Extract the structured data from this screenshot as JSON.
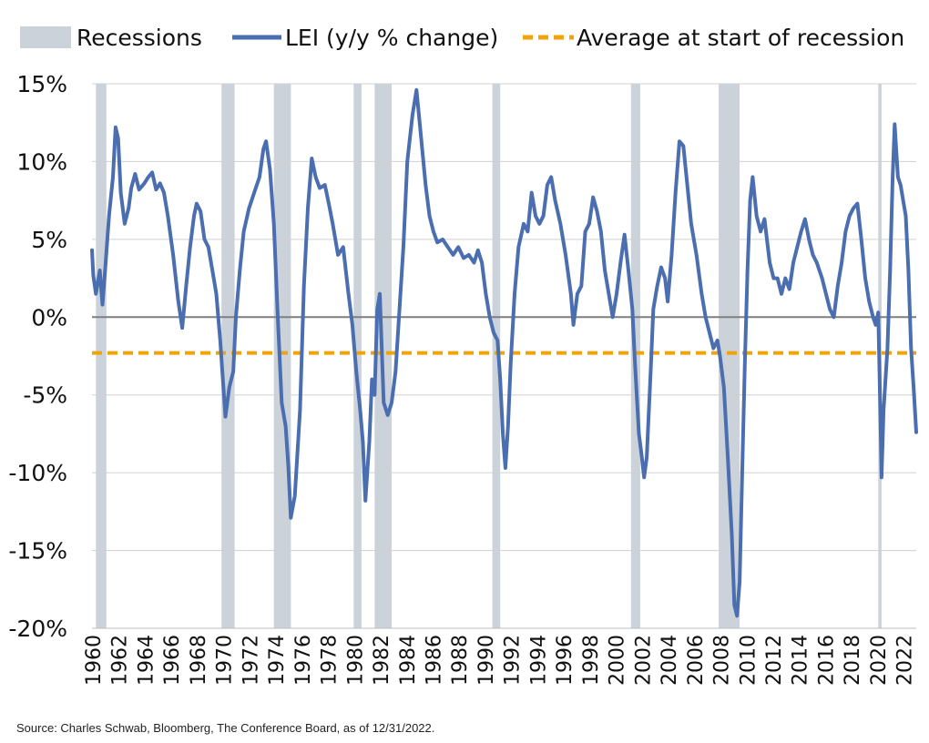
{
  "chart_data": {
    "type": "line",
    "title": "",
    "xlabel": "",
    "ylabel": "",
    "ylim": [
      -20,
      15
    ],
    "xlim": [
      1960,
      2023
    ],
    "y_ticks": [
      15,
      10,
      5,
      0,
      -5,
      -10,
      -15,
      -20
    ],
    "y_tick_labels": [
      "15%",
      "10%",
      "5%",
      "0%",
      "-5%",
      "-10%",
      "-15%",
      "-20%"
    ],
    "x_ticks": [
      1960,
      1962,
      1964,
      1966,
      1968,
      1970,
      1972,
      1974,
      1976,
      1978,
      1980,
      1982,
      1984,
      1986,
      1988,
      1990,
      1992,
      1994,
      1996,
      1998,
      2000,
      2002,
      2004,
      2006,
      2008,
      2010,
      2012,
      2014,
      2016,
      2018,
      2020,
      2022
    ],
    "x_tick_labels": [
      "1960",
      "1962",
      "1964",
      "1966",
      "1968",
      "1970",
      "1972",
      "1974",
      "1976",
      "1978",
      "1980",
      "1982",
      "1984",
      "1986",
      "1988",
      "1990",
      "1992",
      "1994",
      "1996",
      "1998",
      "2000",
      "2002",
      "2004",
      "2006",
      "2008",
      "2010",
      "2012",
      "2014",
      "2016",
      "2018",
      "2020",
      "2022"
    ],
    "grid": "horizontal",
    "legend": {
      "position": "top",
      "entries": [
        {
          "label": "Recessions",
          "kind": "area",
          "color": "#cbd2da"
        },
        {
          "label": "LEI (y/y % change)",
          "kind": "line",
          "color": "#4a6eb0"
        },
        {
          "label": "Average at start of recession",
          "kind": "dashed-line",
          "color": "#f0a30a"
        }
      ]
    },
    "recessions": [
      {
        "start": 1960.3,
        "end": 1961.1
      },
      {
        "start": 1969.9,
        "end": 1970.9
      },
      {
        "start": 1973.9,
        "end": 1975.2
      },
      {
        "start": 1980.0,
        "end": 1980.6
      },
      {
        "start": 1981.6,
        "end": 1982.9
      },
      {
        "start": 1990.6,
        "end": 1991.2
      },
      {
        "start": 2001.2,
        "end": 2001.9
      },
      {
        "start": 2007.9,
        "end": 2009.5
      },
      {
        "start": 2020.1,
        "end": 2020.35
      }
    ],
    "series": [
      {
        "name": "LEI (y/y % change)",
        "color": "#4a6eb0",
        "points": [
          [
            1960.0,
            4.3
          ],
          [
            1960.1,
            2.7
          ],
          [
            1960.3,
            1.5
          ],
          [
            1960.6,
            3.0
          ],
          [
            1960.8,
            0.8
          ],
          [
            1961.0,
            3.0
          ],
          [
            1961.3,
            6.5
          ],
          [
            1961.6,
            9.0
          ],
          [
            1961.8,
            12.2
          ],
          [
            1962.0,
            11.5
          ],
          [
            1962.2,
            8.0
          ],
          [
            1962.5,
            6.0
          ],
          [
            1962.8,
            7.0
          ],
          [
            1963.0,
            8.3
          ],
          [
            1963.3,
            9.2
          ],
          [
            1963.6,
            8.2
          ],
          [
            1964.0,
            8.6
          ],
          [
            1964.3,
            9.0
          ],
          [
            1964.6,
            9.3
          ],
          [
            1964.9,
            8.2
          ],
          [
            1965.2,
            8.6
          ],
          [
            1965.5,
            8.0
          ],
          [
            1965.8,
            6.5
          ],
          [
            1966.2,
            4.0
          ],
          [
            1966.6,
            1.0
          ],
          [
            1966.9,
            -0.7
          ],
          [
            1967.2,
            2.0
          ],
          [
            1967.5,
            4.5
          ],
          [
            1967.8,
            6.5
          ],
          [
            1968.0,
            7.3
          ],
          [
            1968.3,
            6.8
          ],
          [
            1968.6,
            5.0
          ],
          [
            1968.9,
            4.5
          ],
          [
            1969.2,
            3.0
          ],
          [
            1969.5,
            1.5
          ],
          [
            1969.8,
            -1.5
          ],
          [
            1970.0,
            -4.0
          ],
          [
            1970.2,
            -6.4
          ],
          [
            1970.5,
            -4.5
          ],
          [
            1970.8,
            -3.5
          ],
          [
            1971.0,
            0.0
          ],
          [
            1971.3,
            3.0
          ],
          [
            1971.6,
            5.5
          ],
          [
            1972.0,
            7.0
          ],
          [
            1972.4,
            8.0
          ],
          [
            1972.8,
            9.0
          ],
          [
            1973.1,
            10.8
          ],
          [
            1973.3,
            11.3
          ],
          [
            1973.6,
            9.5
          ],
          [
            1973.9,
            6.0
          ],
          [
            1974.2,
            0.0
          ],
          [
            1974.5,
            -5.5
          ],
          [
            1974.8,
            -7.0
          ],
          [
            1975.0,
            -9.5
          ],
          [
            1975.2,
            -12.9
          ],
          [
            1975.5,
            -11.5
          ],
          [
            1975.9,
            -6.0
          ],
          [
            1976.2,
            2.0
          ],
          [
            1976.5,
            7.0
          ],
          [
            1976.8,
            10.2
          ],
          [
            1977.1,
            9.0
          ],
          [
            1977.4,
            8.3
          ],
          [
            1977.8,
            8.5
          ],
          [
            1978.1,
            7.3
          ],
          [
            1978.4,
            6.0
          ],
          [
            1978.8,
            4.0
          ],
          [
            1979.2,
            4.5
          ],
          [
            1979.6,
            1.5
          ],
          [
            1979.9,
            -0.5
          ],
          [
            1980.2,
            -3.5
          ],
          [
            1980.5,
            -6.0
          ],
          [
            1980.7,
            -8.0
          ],
          [
            1980.9,
            -11.8
          ],
          [
            1981.2,
            -8.0
          ],
          [
            1981.4,
            -4.0
          ],
          [
            1981.6,
            -5.0
          ],
          [
            1981.8,
            0.5
          ],
          [
            1982.0,
            1.5
          ],
          [
            1982.3,
            -5.5
          ],
          [
            1982.6,
            -6.3
          ],
          [
            1982.9,
            -5.5
          ],
          [
            1983.2,
            -3.5
          ],
          [
            1983.5,
            0.5
          ],
          [
            1983.8,
            4.5
          ],
          [
            1984.1,
            10.0
          ],
          [
            1984.5,
            13.0
          ],
          [
            1984.8,
            14.6
          ],
          [
            1985.1,
            12.0
          ],
          [
            1985.5,
            8.5
          ],
          [
            1985.8,
            6.5
          ],
          [
            1986.1,
            5.5
          ],
          [
            1986.4,
            4.8
          ],
          [
            1986.8,
            5.0
          ],
          [
            1987.2,
            4.5
          ],
          [
            1987.6,
            4.0
          ],
          [
            1988.0,
            4.5
          ],
          [
            1988.4,
            3.8
          ],
          [
            1988.8,
            4.0
          ],
          [
            1989.2,
            3.5
          ],
          [
            1989.5,
            4.3
          ],
          [
            1989.8,
            3.5
          ],
          [
            1990.1,
            1.5
          ],
          [
            1990.4,
            0.0
          ],
          [
            1990.7,
            -1.0
          ],
          [
            1991.0,
            -1.5
          ],
          [
            1991.2,
            -4.0
          ],
          [
            1991.4,
            -7.5
          ],
          [
            1991.6,
            -9.7
          ],
          [
            1991.8,
            -7.0
          ],
          [
            1992.0,
            -3.0
          ],
          [
            1992.3,
            1.5
          ],
          [
            1992.6,
            4.5
          ],
          [
            1993.0,
            6.0
          ],
          [
            1993.3,
            5.5
          ],
          [
            1993.6,
            8.0
          ],
          [
            1993.9,
            6.5
          ],
          [
            1994.2,
            6.0
          ],
          [
            1994.5,
            6.5
          ],
          [
            1994.8,
            8.5
          ],
          [
            1995.1,
            9.0
          ],
          [
            1995.4,
            7.5
          ],
          [
            1995.8,
            6.0
          ],
          [
            1996.2,
            4.0
          ],
          [
            1996.6,
            1.5
          ],
          [
            1996.8,
            -0.5
          ],
          [
            1997.1,
            1.5
          ],
          [
            1997.4,
            2.0
          ],
          [
            1997.7,
            5.5
          ],
          [
            1998.0,
            6.0
          ],
          [
            1998.3,
            7.7
          ],
          [
            1998.6,
            6.8
          ],
          [
            1998.9,
            5.5
          ],
          [
            1999.2,
            3.0
          ],
          [
            1999.5,
            1.5
          ],
          [
            1999.8,
            0.0
          ],
          [
            2000.1,
            1.5
          ],
          [
            2000.4,
            3.5
          ],
          [
            2000.7,
            5.3
          ],
          [
            2001.0,
            3.0
          ],
          [
            2001.3,
            0.5
          ],
          [
            2001.5,
            -3.0
          ],
          [
            2001.8,
            -7.5
          ],
          [
            2002.0,
            -8.8
          ],
          [
            2002.2,
            -10.3
          ],
          [
            2002.4,
            -9.0
          ],
          [
            2002.7,
            -3.5
          ],
          [
            2002.9,
            0.5
          ],
          [
            2003.2,
            2.0
          ],
          [
            2003.5,
            3.2
          ],
          [
            2003.8,
            2.5
          ],
          [
            2004.0,
            1.0
          ],
          [
            2004.3,
            4.0
          ],
          [
            2004.6,
            8.0
          ],
          [
            2004.9,
            11.3
          ],
          [
            2005.2,
            11.0
          ],
          [
            2005.5,
            8.5
          ],
          [
            2005.8,
            6.0
          ],
          [
            2006.2,
            4.0
          ],
          [
            2006.6,
            1.5
          ],
          [
            2006.9,
            0.0
          ],
          [
            2007.2,
            -1.0
          ],
          [
            2007.5,
            -2.0
          ],
          [
            2007.8,
            -1.5
          ],
          [
            2008.0,
            -2.5
          ],
          [
            2008.3,
            -4.5
          ],
          [
            2008.6,
            -9.0
          ],
          [
            2008.9,
            -14.0
          ],
          [
            2009.1,
            -18.5
          ],
          [
            2009.3,
            -19.2
          ],
          [
            2009.5,
            -17.0
          ],
          [
            2009.7,
            -10.0
          ],
          [
            2009.9,
            -3.0
          ],
          [
            2010.1,
            3.0
          ],
          [
            2010.3,
            7.5
          ],
          [
            2010.5,
            9.0
          ],
          [
            2010.8,
            6.5
          ],
          [
            2011.1,
            5.5
          ],
          [
            2011.4,
            6.3
          ],
          [
            2011.8,
            3.5
          ],
          [
            2012.1,
            2.5
          ],
          [
            2012.4,
            2.5
          ],
          [
            2012.7,
            1.5
          ],
          [
            2013.0,
            2.5
          ],
          [
            2013.3,
            1.8
          ],
          [
            2013.6,
            3.5
          ],
          [
            2013.9,
            4.5
          ],
          [
            2014.2,
            5.5
          ],
          [
            2014.5,
            6.3
          ],
          [
            2014.8,
            5.0
          ],
          [
            2015.1,
            4.0
          ],
          [
            2015.4,
            3.5
          ],
          [
            2015.8,
            2.5
          ],
          [
            2016.1,
            1.5
          ],
          [
            2016.4,
            0.5
          ],
          [
            2016.7,
            0.0
          ],
          [
            2017.0,
            2.0
          ],
          [
            2017.3,
            3.5
          ],
          [
            2017.6,
            5.5
          ],
          [
            2017.9,
            6.5
          ],
          [
            2018.2,
            7.0
          ],
          [
            2018.5,
            7.3
          ],
          [
            2018.8,
            5.0
          ],
          [
            2019.1,
            2.5
          ],
          [
            2019.4,
            1.0
          ],
          [
            2019.7,
            0.0
          ],
          [
            2019.9,
            -0.5
          ],
          [
            2020.1,
            0.3
          ],
          [
            2020.25,
            -6.0
          ],
          [
            2020.35,
            -10.3
          ],
          [
            2020.5,
            -6.0
          ],
          [
            2020.8,
            -2.0
          ],
          [
            2021.0,
            3.0
          ],
          [
            2021.2,
            9.0
          ],
          [
            2021.35,
            12.4
          ],
          [
            2021.6,
            9.0
          ],
          [
            2021.8,
            8.5
          ],
          [
            2022.0,
            7.5
          ],
          [
            2022.2,
            6.5
          ],
          [
            2022.4,
            3.0
          ],
          [
            2022.6,
            -2.0
          ],
          [
            2022.8,
            -4.5
          ],
          [
            2023.0,
            -7.4
          ]
        ]
      }
    ],
    "reference_lines": [
      {
        "name": "Average at start of recession",
        "y": -2.3,
        "color": "#f0a30a",
        "style": "dashed"
      }
    ],
    "source": "Source: Charles Schwab, Bloomberg, The Conference Board, as of 12/31/2022."
  }
}
